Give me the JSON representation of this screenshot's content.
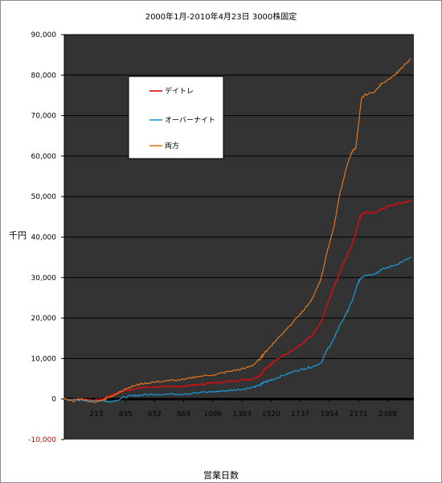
{
  "chart_data": {
    "type": "line",
    "title": "2000年1月-2010年4月23日 3000株固定",
    "xlabel": "営業日数",
    "ylabel": "千円",
    "xlim": [
      0,
      2530
    ],
    "ylim": [
      -10000,
      90000
    ],
    "x_ticks": [
      "213",
      "435",
      "652",
      "869",
      "1086",
      "1303",
      "1520",
      "1737",
      "1954",
      "2171",
      "2388"
    ],
    "y_ticks": [
      {
        "value": 90000,
        "label": "90,000"
      },
      {
        "value": 80000,
        "label": "80,000"
      },
      {
        "value": 70000,
        "label": "70,000"
      },
      {
        "value": 60000,
        "label": "60,000"
      },
      {
        "value": 50000,
        "label": "50,000"
      },
      {
        "value": 40000,
        "label": "40,000"
      },
      {
        "value": 30000,
        "label": "30,000"
      },
      {
        "value": 20000,
        "label": "20,000"
      },
      {
        "value": 10000,
        "label": "10,000"
      },
      {
        "value": 0,
        "label": "0"
      },
      {
        "value": -10000,
        "label": "-10,000"
      }
    ],
    "grid": true,
    "legend_position": "upper-left",
    "plot_background": "#333333",
    "series": [
      {
        "name": "デイトレ",
        "color": "#d01010",
        "x": [
          0,
          60,
          120,
          213,
          280,
          320,
          380,
          435,
          500,
          560,
          652,
          750,
          869,
          950,
          1086,
          1150,
          1220,
          1303,
          1370,
          1420,
          1440,
          1480,
          1520,
          1600,
          1680,
          1737,
          1800,
          1860,
          1900,
          1954,
          1990,
          2040,
          2080,
          2110,
          2130,
          2150,
          2171,
          2250,
          2300,
          2388,
          2450,
          2510
        ],
        "y": [
          0,
          -200,
          100,
          -300,
          0,
          800,
          1500,
          2000,
          2500,
          2800,
          3000,
          3000,
          3200,
          3500,
          4000,
          4200,
          4500,
          4800,
          5000,
          6000,
          7000,
          8000,
          9500,
          11000,
          12500,
          14000,
          16000,
          19000,
          23000,
          28000,
          31000,
          35000,
          38000,
          41000,
          44000,
          45500,
          46000,
          46000,
          47000,
          48000,
          48500,
          49000
        ]
      },
      {
        "name": "オーバーナイト",
        "color": "#1a9ad6",
        "x": [
          0,
          60,
          120,
          213,
          280,
          320,
          380,
          435,
          500,
          560,
          652,
          750,
          869,
          950,
          1086,
          1150,
          1220,
          1303,
          1370,
          1420,
          1440,
          1480,
          1520,
          1600,
          1680,
          1737,
          1800,
          1860,
          1900,
          1954,
          1990,
          2040,
          2080,
          2110,
          2130,
          2150,
          2171,
          2250,
          2300,
          2388,
          2450,
          2510
        ],
        "y": [
          0,
          -300,
          -200,
          -500,
          -300,
          -700,
          -300,
          500,
          800,
          1000,
          1200,
          1200,
          1300,
          1500,
          1800,
          2000,
          2200,
          2500,
          3000,
          3500,
          4000,
          4500,
          5000,
          6000,
          7000,
          7500,
          8000,
          9000,
          12000,
          15000,
          18000,
          21000,
          24000,
          27000,
          29000,
          30000,
          30500,
          31000,
          32000,
          33000,
          34000,
          35000
        ]
      },
      {
        "name": "両方",
        "color": "#e07820",
        "x": [
          0,
          60,
          120,
          213,
          280,
          320,
          380,
          435,
          500,
          560,
          652,
          750,
          869,
          950,
          1086,
          1150,
          1220,
          1303,
          1370,
          1420,
          1440,
          1480,
          1520,
          1600,
          1680,
          1737,
          1800,
          1860,
          1900,
          1954,
          1990,
          2040,
          2080,
          2110,
          2130,
          2150,
          2171,
          2250,
          2300,
          2388,
          2450,
          2510
        ],
        "y": [
          0,
          -500,
          0,
          -800,
          -300,
          500,
          1200,
          2500,
          3200,
          3800,
          4200,
          4500,
          4800,
          5500,
          6000,
          6500,
          7000,
          7500,
          8500,
          10000,
          11000,
          12500,
          14000,
          17000,
          20000,
          22000,
          25000,
          30000,
          36000,
          43000,
          50000,
          57000,
          61000,
          62000,
          68000,
          74000,
          75000,
          76000,
          78000,
          80000,
          82000,
          84000
        ]
      }
    ]
  }
}
